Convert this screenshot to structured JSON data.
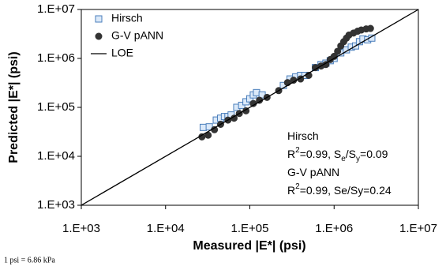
{
  "chart_data": {
    "type": "scatter",
    "xlabel": "Measured |E*| (psi)",
    "ylabel": "Predicted |E*| (psi)",
    "log_x": true,
    "log_y": true,
    "grid": false,
    "legend": "upper left",
    "xlim": [
      1000,
      10000000
    ],
    "ylim": [
      1000,
      10000000
    ],
    "xticks": [
      {
        "value": 1000,
        "label": "1.E+03"
      },
      {
        "value": 10000,
        "label": "1.E+04"
      },
      {
        "value": 100000,
        "label": "1.E+05"
      },
      {
        "value": 1000000,
        "label": "1.E+06"
      },
      {
        "value": 10000000,
        "label": "1.E+07"
      }
    ],
    "yticks": [
      {
        "value": 1000,
        "label": "1.E+03"
      },
      {
        "value": 10000,
        "label": "1.E+04"
      },
      {
        "value": 100000,
        "label": "1.E+05"
      },
      {
        "value": 1000000,
        "label": "1.E+06"
      },
      {
        "value": 10000000,
        "label": "1.E+07"
      }
    ],
    "series": [
      {
        "name": "Hirsch",
        "marker": "square",
        "color": "#4a7ebb",
        "fill": "#dbe9f9",
        "x": [
          28000,
          33000,
          40000,
          45000,
          50000,
          55000,
          60000,
          70000,
          80000,
          90000,
          100000,
          110000,
          120000,
          140000,
          250000,
          300000,
          350000,
          400000,
          450000,
          600000,
          700000,
          800000,
          900000,
          1000000,
          1200000,
          1400000,
          1600000,
          1800000,
          2000000,
          2200000,
          2500000,
          2800000
        ],
        "y": [
          39000,
          40000,
          55000,
          60000,
          65000,
          65000,
          70000,
          100000,
          110000,
          130000,
          150000,
          180000,
          200000,
          180000,
          280000,
          380000,
          420000,
          450000,
          450000,
          650000,
          750000,
          800000,
          900000,
          1000000,
          1300000,
          1500000,
          1700000,
          1800000,
          2200000,
          2500000,
          2400000,
          2600000
        ]
      },
      {
        "name": "G-V pANN",
        "marker": "circle",
        "color": "#333333",
        "fill": "#333333",
        "x": [
          27000,
          32000,
          38000,
          45000,
          55000,
          65000,
          75000,
          90000,
          110000,
          130000,
          160000,
          220000,
          280000,
          330000,
          400000,
          500000,
          600000,
          700000,
          800000,
          900000,
          1000000,
          1100000,
          1200000,
          1300000,
          1400000,
          1500000,
          1700000,
          1900000,
          2100000,
          2400000,
          2700000
        ],
        "y": [
          25000,
          27000,
          35000,
          45000,
          55000,
          60000,
          75000,
          85000,
          120000,
          140000,
          160000,
          220000,
          320000,
          360000,
          380000,
          450000,
          650000,
          700000,
          750000,
          950000,
          1100000,
          1400000,
          1800000,
          2200000,
          2600000,
          3000000,
          3300000,
          3600000,
          3800000,
          4000000,
          4100000
        ]
      },
      {
        "name": "LOE",
        "marker": "line",
        "color": "#000000",
        "x": [
          1000,
          10000000
        ],
        "y": [
          1000,
          10000000
        ]
      }
    ],
    "annotations": [
      [
        {
          "text": "Hirsch"
        }
      ],
      [
        {
          "text": "R"
        },
        {
          "text": "2",
          "style": "sup"
        },
        {
          "text": "=0.99, S"
        },
        {
          "text": "e",
          "style": "sub"
        },
        {
          "text": "/S"
        },
        {
          "text": "y",
          "style": "sub"
        },
        {
          "text": "=0.09"
        }
      ],
      [
        {
          "text": "G-V pANN"
        }
      ],
      [
        {
          "text": "R"
        },
        {
          "text": "2",
          "style": "sup"
        },
        {
          "text": "=0.99, Se/Sy=0.24"
        }
      ]
    ],
    "footnote": "1 psi = 6.86 kPa"
  }
}
